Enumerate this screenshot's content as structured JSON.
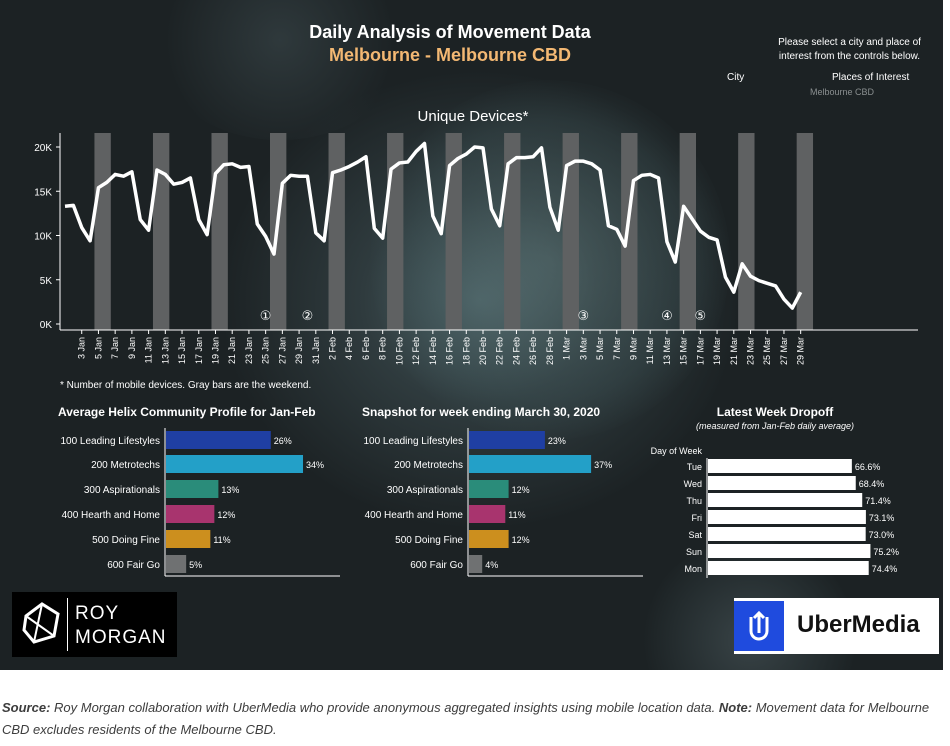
{
  "header": {
    "title": "Daily Analysis of Movement Data",
    "subtitle": "Melbourne - Melbourne CBD",
    "instructions": "Please select a city and place of interest from the controls below.",
    "city_label": "City",
    "places_label": "Places of Interest",
    "places_value": "Melbourne CBD"
  },
  "colors": {
    "line": "#ffffff",
    "weekend_bar": "#5f6162",
    "subtitle": "#f3b873",
    "profile": [
      "#1f3fa3",
      "#23a0c8",
      "#2a8c7a",
      "#a8346e",
      "#cc8f1e",
      "#6f7172"
    ],
    "dropoff_bar": "#ffffff"
  },
  "footnote": "* Number of mobile devices. Gray bars are the weekend.",
  "chart_data": [
    {
      "type": "line",
      "title": "Unique Devices*",
      "yticks": [
        "0K",
        "5K",
        "10K",
        "15K",
        "20K"
      ],
      "ylim": [
        0,
        21000
      ],
      "xticks": [
        "3 Jan",
        "5 Jan",
        "7 Jan",
        "9 Jan",
        "11 Jan",
        "13 Jan",
        "15 Jan",
        "17 Jan",
        "19 Jan",
        "21 Jan",
        "23 Jan",
        "25 Jan",
        "27 Jan",
        "29 Jan",
        "31 Jan",
        "2 Feb",
        "4 Feb",
        "6 Feb",
        "8 Feb",
        "10 Feb",
        "12 Feb",
        "14 Feb",
        "16 Feb",
        "18 Feb",
        "20 Feb",
        "22 Feb",
        "24 Feb",
        "26 Feb",
        "28 Feb",
        "1 Mar",
        "3 Mar",
        "5 Mar",
        "7 Mar",
        "9 Mar",
        "11 Mar",
        "13 Mar",
        "15 Mar",
        "17 Mar",
        "19 Mar",
        "21 Mar",
        "23 Mar",
        "25 Mar",
        "27 Mar",
        "29 Mar"
      ],
      "x_start": "2020-01-01",
      "values": [
        13300,
        13400,
        10900,
        9400,
        15400,
        16000,
        16900,
        16700,
        17200,
        11800,
        10600,
        17400,
        16900,
        15800,
        16000,
        16500,
        11800,
        10100,
        17000,
        18000,
        18100,
        17700,
        17800,
        11300,
        9900,
        7900,
        15900,
        16800,
        16700,
        16700,
        10300,
        9400,
        17100,
        17400,
        17800,
        18300,
        18900,
        10800,
        9700,
        17500,
        18200,
        18300,
        19500,
        20400,
        12200,
        10200,
        17900,
        18700,
        19200,
        20000,
        19900,
        13000,
        11100,
        18100,
        18800,
        18800,
        18900,
        19900,
        13200,
        10600,
        17900,
        18400,
        18400,
        18100,
        17400,
        11100,
        10700,
        8800,
        16200,
        16800,
        16900,
        16500,
        9300,
        7000,
        13300,
        11900,
        10500,
        9800,
        9500,
        5300,
        3600,
        6800,
        5400,
        4900,
        4600,
        4300,
        2800,
        1800,
        3600
      ],
      "weekends": [
        [
          4,
          5
        ],
        [
          11,
          12
        ],
        [
          18,
          19
        ],
        [
          25,
          26
        ],
        [
          32,
          33
        ],
        [
          39,
          40
        ],
        [
          46,
          47
        ],
        [
          53,
          54
        ],
        [
          60,
          61
        ],
        [
          67,
          68
        ],
        [
          74,
          75
        ],
        [
          81,
          82
        ],
        [
          88,
          89
        ]
      ],
      "annotations": [
        {
          "label": "①",
          "day": 24
        },
        {
          "label": "②",
          "day": 29
        },
        {
          "label": "③",
          "day": 62
        },
        {
          "label": "④",
          "day": 72
        },
        {
          "label": "⑤",
          "day": 76
        }
      ]
    },
    {
      "type": "bar",
      "title": "Average Helix Community Profile for Jan-Feb",
      "categories": [
        "100 Leading Lifestyles",
        "200 Metrotechs",
        "300 Aspirationals",
        "400 Hearth and Home",
        "500 Doing Fine",
        "600 Fair Go"
      ],
      "values": [
        26,
        34,
        13,
        12,
        11,
        5
      ],
      "value_labels": [
        "26%",
        "34%",
        "13%",
        "12%",
        "11%",
        "5%"
      ]
    },
    {
      "type": "bar",
      "title": "Snapshot for week ending March 30, 2020",
      "categories": [
        "100 Leading Lifestyles",
        "200 Metrotechs",
        "300 Aspirationals",
        "400 Hearth and Home",
        "500 Doing Fine",
        "600 Fair Go"
      ],
      "values": [
        23,
        37,
        12,
        11,
        12,
        4
      ],
      "value_labels": [
        "23%",
        "37%",
        "12%",
        "11%",
        "12%",
        "4%"
      ]
    },
    {
      "type": "bar",
      "title": "Latest Week Dropoff",
      "subtitle": "(measured from Jan-Feb daily average)",
      "axis_label": "Day of Week",
      "categories": [
        "Tue",
        "Wed",
        "Thu",
        "Fri",
        "Sat",
        "Sun",
        "Mon"
      ],
      "values": [
        66.6,
        68.4,
        71.4,
        73.1,
        73.0,
        75.2,
        74.4
      ],
      "value_labels": [
        "66.6%",
        "68.4%",
        "71.4%",
        "73.1%",
        "73.0%",
        "75.2%",
        "74.4%"
      ]
    }
  ],
  "logos": {
    "roy_morgan_line1": "ROY",
    "roy_morgan_line2": "MORGAN",
    "ubermedia": "UberMedia"
  },
  "source": {
    "source_label": "Source:",
    "source_text": " Roy Morgan collaboration with UberMedia who provide anonymous aggregated insights using mobile location data. ",
    "note_label": "Note:",
    "note_text": " Movement data for Melbourne CBD excludes residents of the Melbourne CBD."
  }
}
